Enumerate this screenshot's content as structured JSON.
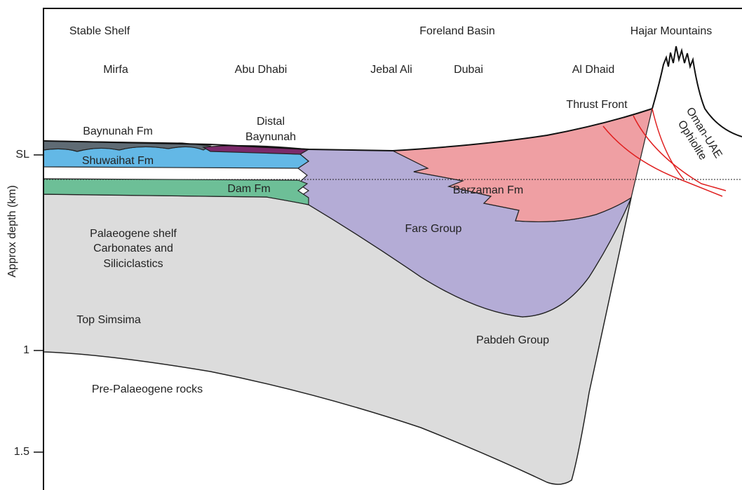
{
  "axis": {
    "label": "Approx depth (km)",
    "ticks": [
      "SL",
      "1",
      "1.5"
    ]
  },
  "regions": [
    "Stable Shelf",
    "Foreland Basin",
    "Hajar Mountains"
  ],
  "places": [
    "Mirfa",
    "Abu Dhabi",
    "Jebal Ali",
    "Dubai",
    "Al Dhaid"
  ],
  "units": {
    "thrust_front": "Thrust Front",
    "distal_baynunah": [
      "Distal",
      "Baynunah"
    ],
    "baynunah": "Baynunah Fm",
    "shuwaihat": "Shuwaihat Fm",
    "dam": "Dam Fm",
    "barzaman": "Barzaman Fm",
    "ophiolite": [
      "Oman-UAE",
      "Ophiolite"
    ],
    "fars": "Fars Group",
    "palaeogene": [
      "Palaeogene shelf",
      "Carbonates and",
      "Siliciclastics"
    ],
    "top_simsima": "Top Simsima",
    "pabdeh": "Pabdeh Group",
    "pre_palaeogene": "Pre-Palaeogene rocks"
  }
}
